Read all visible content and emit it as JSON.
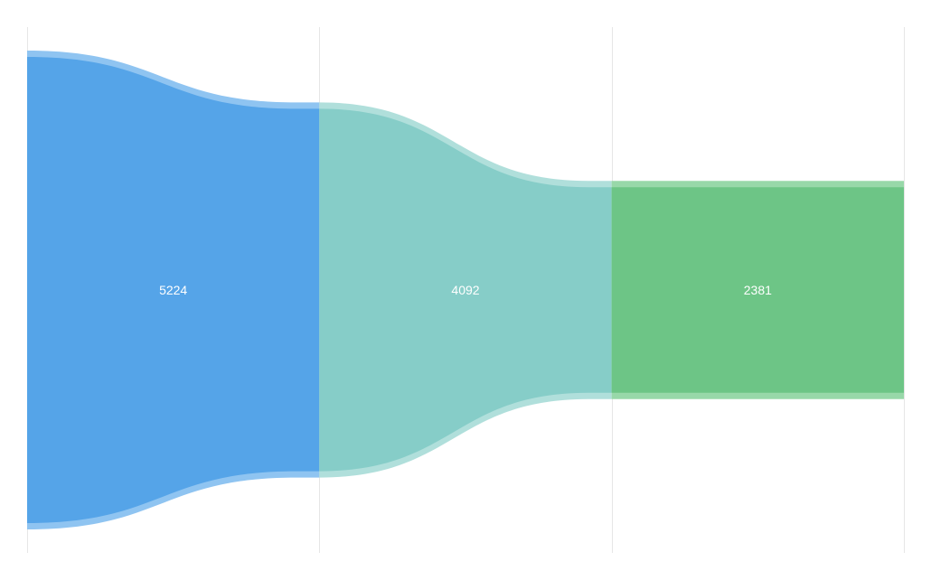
{
  "colors": {
    "background": "#ffffff",
    "divider": "#e6e6e6",
    "stage_fills": [
      "#55a4e8",
      "#86cdc8",
      "#6dc586"
    ],
    "stage_rims": [
      "#8fc4f1",
      "#b0dfdb",
      "#98d8a9"
    ]
  },
  "chart_data": {
    "type": "funnel",
    "title": "",
    "xlabel": "",
    "ylabel": "",
    "grid": true,
    "legend": "none",
    "stages": [
      {
        "value": 5224,
        "label": "5224"
      },
      {
        "value": 4092,
        "label": "4092"
      },
      {
        "value": 2381,
        "label": "2381"
      }
    ]
  }
}
